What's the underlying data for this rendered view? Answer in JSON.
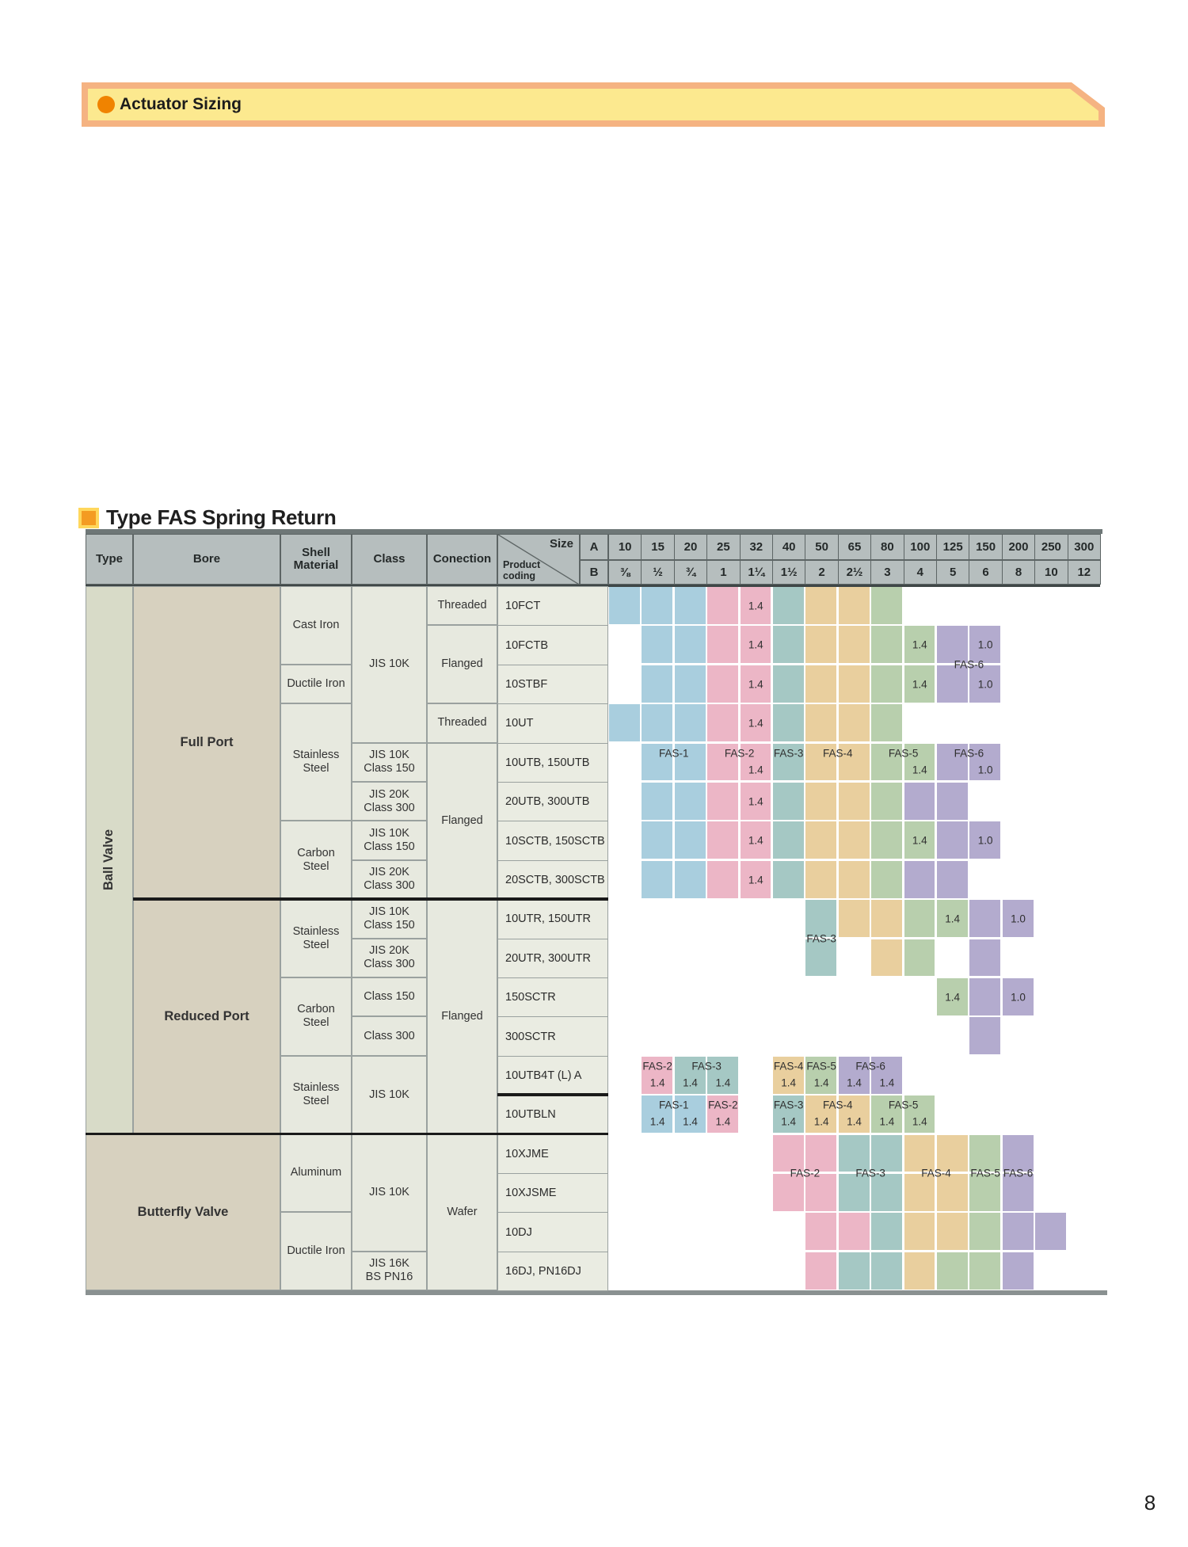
{
  "banner": {
    "title": "Actuator Sizing"
  },
  "section": {
    "title": "Type FAS Spring Return"
  },
  "page_number": "8",
  "table": {
    "column_headers": {
      "type": "Type",
      "bore": "Bore",
      "shell": "Shell\nMaterial",
      "class": "Class",
      "connection": "Conection"
    },
    "corner": {
      "size_label": "Size",
      "product_label": "Product\ncoding",
      "row_a": "A",
      "row_b": "B"
    },
    "sizes_a": [
      "10",
      "15",
      "20",
      "25",
      "32",
      "40",
      "50",
      "65",
      "80",
      "100",
      "125",
      "150",
      "200",
      "250",
      "300"
    ],
    "sizes_b": [
      "⅜",
      "½",
      "¾",
      "1",
      "1¼",
      "1½",
      "2",
      "2½",
      "3",
      "4",
      "5",
      "6",
      "8",
      "10",
      "12"
    ],
    "left_cells": [
      {
        "col": "type",
        "r0": 0,
        "r1": 13,
        "label": "Ball Valve",
        "kind": "type",
        "vertical": true
      },
      {
        "col": "bore",
        "r0": 0,
        "r1": 7,
        "label": "Full Port",
        "kind": "bore"
      },
      {
        "col": "bore",
        "r0": 8,
        "r1": 13,
        "label": "Reduced Port",
        "kind": "bore"
      },
      {
        "col": "typebore",
        "r0": 14,
        "r1": 17,
        "label": "Butterfly Valve",
        "kind": "bore"
      },
      {
        "col": "shell",
        "r0": 0,
        "r1": 1,
        "label": "Cast Iron"
      },
      {
        "col": "shell",
        "r0": 2,
        "r1": 2,
        "label": "Ductile Iron"
      },
      {
        "col": "shell",
        "r0": 3,
        "r1": 5,
        "label": "Stainless\nSteel"
      },
      {
        "col": "shell",
        "r0": 6,
        "r1": 7,
        "label": "Carbon\nSteel"
      },
      {
        "col": "shell",
        "r0": 8,
        "r1": 9,
        "label": "Stainless\nSteel"
      },
      {
        "col": "shell",
        "r0": 10,
        "r1": 11,
        "label": "Carbon\nSteel"
      },
      {
        "col": "shell",
        "r0": 12,
        "r1": 13,
        "label": "Stainless\nSteel"
      },
      {
        "col": "shell",
        "r0": 14,
        "r1": 15,
        "label": "Aluminum"
      },
      {
        "col": "shell",
        "r0": 16,
        "r1": 17,
        "label": "Ductile Iron"
      },
      {
        "col": "class",
        "r0": 0,
        "r1": 3,
        "label": "JIS 10K"
      },
      {
        "col": "class",
        "r0": 4,
        "r1": 4,
        "label": "JIS 10K\nClass 150"
      },
      {
        "col": "class",
        "r0": 5,
        "r1": 5,
        "label": "JIS 20K\nClass 300"
      },
      {
        "col": "class",
        "r0": 6,
        "r1": 6,
        "label": "JIS 10K\nClass 150"
      },
      {
        "col": "class",
        "r0": 7,
        "r1": 7,
        "label": "JIS 20K\nClass 300"
      },
      {
        "col": "class",
        "r0": 8,
        "r1": 8,
        "label": "JIS 10K\nClass 150"
      },
      {
        "col": "class",
        "r0": 9,
        "r1": 9,
        "label": "JIS 20K\nClass 300"
      },
      {
        "col": "class",
        "r0": 10,
        "r1": 10,
        "label": "Class 150"
      },
      {
        "col": "class",
        "r0": 11,
        "r1": 11,
        "label": "Class 300"
      },
      {
        "col": "class",
        "r0": 12,
        "r1": 13,
        "label": "JIS 10K"
      },
      {
        "col": "class",
        "r0": 14,
        "r1": 16,
        "label": "JIS 10K"
      },
      {
        "col": "class",
        "r0": 17,
        "r1": 17,
        "label": "JIS 16K\nBS PN16"
      },
      {
        "col": "conn",
        "r0": 0,
        "r1": 0,
        "label": "Threaded"
      },
      {
        "col": "conn",
        "r0": 1,
        "r1": 2,
        "label": "Flanged"
      },
      {
        "col": "conn",
        "r0": 3,
        "r1": 3,
        "label": "Threaded"
      },
      {
        "col": "conn",
        "r0": 4,
        "r1": 7,
        "label": "Flanged"
      },
      {
        "col": "conn",
        "r0": 8,
        "r1": 13,
        "label": "Flanged"
      },
      {
        "col": "conn",
        "r0": 14,
        "r1": 17,
        "label": "Wafer"
      }
    ],
    "products": [
      "10FCT",
      "10FCTB",
      "10STBF",
      "10UT",
      "10UTB, 150UTB",
      "20UTB, 300UTB",
      "10SCTB, 150SCTB",
      "20SCTB, 300SCTB",
      "10UTR, 150UTR",
      "20UTR, 300UTR",
      "150SCTR",
      "300SCTR",
      "10UTB4T (L) A",
      "10UTBLN",
      "10XJME",
      "10XJSME",
      "10DJ",
      "16DJ, PN16DJ"
    ],
    "grid_blocks": [
      {
        "r": 0,
        "c0": 0,
        "c1": 2,
        "color": "blue"
      },
      {
        "r": 0,
        "c0": 3,
        "c1": 4,
        "color": "pink",
        "values": {
          "4": "1.4"
        }
      },
      {
        "r": 0,
        "c0": 5,
        "c1": 5,
        "color": "teal"
      },
      {
        "r": 0,
        "c0": 6,
        "c1": 7,
        "color": "tan"
      },
      {
        "r": 0,
        "c0": 8,
        "c1": 8,
        "color": "green"
      },
      {
        "r": 1,
        "c0": 1,
        "c1": 2,
        "color": "blue"
      },
      {
        "r": 1,
        "c0": 3,
        "c1": 4,
        "color": "pink",
        "values": {
          "4": "1.4"
        }
      },
      {
        "r": 1,
        "c0": 5,
        "c1": 5,
        "color": "teal"
      },
      {
        "r": 1,
        "c0": 6,
        "c1": 7,
        "color": "tan"
      },
      {
        "r": 1,
        "c0": 8,
        "c1": 9,
        "color": "green",
        "values": {
          "9": "1.4"
        }
      },
      {
        "r": 1,
        "c0": 10,
        "c1": 11,
        "color": "purple",
        "values": {
          "11": "1.0"
        }
      },
      {
        "r": 2,
        "c0": 1,
        "c1": 2,
        "color": "blue"
      },
      {
        "r": 2,
        "c0": 3,
        "c1": 4,
        "color": "pink",
        "values": {
          "4": "1.4"
        }
      },
      {
        "r": 2,
        "c0": 5,
        "c1": 5,
        "color": "teal"
      },
      {
        "r": 2,
        "c0": 6,
        "c1": 7,
        "color": "tan"
      },
      {
        "r": 2,
        "c0": 8,
        "c1": 9,
        "color": "green",
        "values": {
          "9": "1.4"
        }
      },
      {
        "r": 2,
        "c0": 10,
        "c1": 11,
        "color": "purple",
        "values": {
          "11": "1.0"
        }
      },
      {
        "r": 3,
        "c0": 0,
        "c1": 2,
        "color": "blue"
      },
      {
        "r": 3,
        "c0": 3,
        "c1": 4,
        "color": "pink",
        "values": {
          "4": "1.4"
        }
      },
      {
        "r": 3,
        "c0": 5,
        "c1": 5,
        "color": "teal"
      },
      {
        "r": 3,
        "c0": 6,
        "c1": 7,
        "color": "tan"
      },
      {
        "r": 3,
        "c0": 8,
        "c1": 8,
        "color": "green"
      },
      {
        "r": 4,
        "c0": 1,
        "c1": 2,
        "color": "blue",
        "label": "FAS-1"
      },
      {
        "r": 4,
        "c0": 3,
        "c1": 4,
        "color": "pink",
        "label": "FAS-2",
        "values": {
          "4": "1.4"
        }
      },
      {
        "r": 4,
        "c0": 5,
        "c1": 5,
        "color": "teal",
        "label": "FAS-3"
      },
      {
        "r": 4,
        "c0": 6,
        "c1": 7,
        "color": "tan",
        "label": "FAS-4"
      },
      {
        "r": 4,
        "c0": 8,
        "c1": 9,
        "color": "green",
        "label": "FAS-5",
        "values": {
          "9": "1.4"
        }
      },
      {
        "r": 4,
        "c0": 10,
        "c1": 11,
        "color": "purple",
        "label": "FAS-6",
        "values": {
          "11": "1.0"
        }
      },
      {
        "r": 5,
        "c0": 1,
        "c1": 2,
        "color": "blue"
      },
      {
        "r": 5,
        "c0": 3,
        "c1": 4,
        "color": "pink",
        "values": {
          "4": "1.4"
        }
      },
      {
        "r": 5,
        "c0": 5,
        "c1": 5,
        "color": "teal"
      },
      {
        "r": 5,
        "c0": 6,
        "c1": 7,
        "color": "tan"
      },
      {
        "r": 5,
        "c0": 8,
        "c1": 8,
        "color": "green"
      },
      {
        "r": 5,
        "c0": 9,
        "c1": 10,
        "color": "purple"
      },
      {
        "r": 6,
        "c0": 1,
        "c1": 2,
        "color": "blue"
      },
      {
        "r": 6,
        "c0": 3,
        "c1": 4,
        "color": "pink",
        "values": {
          "4": "1.4"
        }
      },
      {
        "r": 6,
        "c0": 5,
        "c1": 5,
        "color": "teal"
      },
      {
        "r": 6,
        "c0": 6,
        "c1": 7,
        "color": "tan"
      },
      {
        "r": 6,
        "c0": 8,
        "c1": 9,
        "color": "green",
        "values": {
          "9": "1.4"
        }
      },
      {
        "r": 6,
        "c0": 10,
        "c1": 11,
        "color": "purple",
        "values": {
          "11": "1.0"
        }
      },
      {
        "r": 7,
        "c0": 1,
        "c1": 2,
        "color": "blue"
      },
      {
        "r": 7,
        "c0": 3,
        "c1": 4,
        "color": "pink",
        "values": {
          "4": "1.4"
        }
      },
      {
        "r": 7,
        "c0": 5,
        "c1": 5,
        "color": "teal"
      },
      {
        "r": 7,
        "c0": 6,
        "c1": 7,
        "color": "tan"
      },
      {
        "r": 7,
        "c0": 8,
        "c1": 8,
        "color": "green"
      },
      {
        "r": 7,
        "c0": 9,
        "c1": 10,
        "color": "purple"
      },
      {
        "r": 8,
        "c0": 6,
        "c1": 6,
        "color": "teal"
      },
      {
        "r": 8,
        "c0": 7,
        "c1": 8,
        "color": "tan"
      },
      {
        "r": 8,
        "c0": 9,
        "c1": 10,
        "color": "green",
        "values": {
          "10": "1.4"
        }
      },
      {
        "r": 8,
        "c0": 11,
        "c1": 12,
        "color": "purple",
        "values": {
          "12": "1.0"
        }
      },
      {
        "r": 9,
        "c0": 6,
        "c1": 6,
        "color": "teal"
      },
      {
        "r": 9,
        "c0": 8,
        "c1": 8,
        "color": "tan"
      },
      {
        "r": 9,
        "c0": 9,
        "c1": 9,
        "color": "green"
      },
      {
        "r": 9,
        "c0": 11,
        "c1": 11,
        "color": "purple"
      },
      {
        "r": 10,
        "c0": 10,
        "c1": 10,
        "color": "green",
        "values": {
          "10": "1.4"
        }
      },
      {
        "r": 10,
        "c0": 11,
        "c1": 12,
        "color": "purple",
        "values": {
          "12": "1.0"
        }
      },
      {
        "r": 11,
        "c0": 11,
        "c1": 11,
        "color": "purple"
      },
      {
        "r": 12,
        "c0": 1,
        "c1": 1,
        "color": "pink",
        "label": "FAS-2",
        "values": {
          "1": "1.4"
        }
      },
      {
        "r": 12,
        "c0": 2,
        "c1": 3,
        "color": "teal",
        "label": "FAS-3",
        "values": {
          "2": "1.4",
          "3": "1.4"
        }
      },
      {
        "r": 12,
        "c0": 5,
        "c1": 5,
        "color": "tan",
        "label": "FAS-4",
        "values": {
          "5": "1.4"
        }
      },
      {
        "r": 12,
        "c0": 6,
        "c1": 6,
        "color": "green",
        "label": "FAS-5",
        "values": {
          "6": "1.4"
        }
      },
      {
        "r": 12,
        "c0": 7,
        "c1": 8,
        "color": "purple",
        "label": "FAS-6",
        "values": {
          "7": "1.4",
          "8": "1.4"
        }
      },
      {
        "r": 13,
        "c0": 1,
        "c1": 2,
        "color": "blue",
        "label": "FAS-1",
        "values": {
          "1": "1.4",
          "2": "1.4"
        }
      },
      {
        "r": 13,
        "c0": 3,
        "c1": 3,
        "color": "pink",
        "label": "FAS-2",
        "values": {
          "3": "1.4"
        }
      },
      {
        "r": 13,
        "c0": 5,
        "c1": 5,
        "color": "teal",
        "label": "FAS-3",
        "values": {
          "5": "1.4"
        }
      },
      {
        "r": 13,
        "c0": 6,
        "c1": 7,
        "color": "tan",
        "label": "FAS-4",
        "values": {
          "6": "1.4",
          "7": "1.4"
        }
      },
      {
        "r": 13,
        "c0": 8,
        "c1": 9,
        "color": "green",
        "label": "FAS-5",
        "values": {
          "8": "1.4",
          "9": "1.4"
        }
      },
      {
        "r": 14,
        "c0": 5,
        "c1": 6,
        "color": "pink"
      },
      {
        "r": 14,
        "c0": 7,
        "c1": 8,
        "color": "teal"
      },
      {
        "r": 14,
        "c0": 9,
        "c1": 10,
        "color": "tan"
      },
      {
        "r": 14,
        "c0": 11,
        "c1": 11,
        "color": "green"
      },
      {
        "r": 14,
        "c0": 12,
        "c1": 12,
        "color": "purple"
      },
      {
        "r": 15,
        "c0": 5,
        "c1": 6,
        "color": "pink"
      },
      {
        "r": 15,
        "c0": 7,
        "c1": 8,
        "color": "teal"
      },
      {
        "r": 15,
        "c0": 9,
        "c1": 10,
        "color": "tan"
      },
      {
        "r": 15,
        "c0": 11,
        "c1": 11,
        "color": "green"
      },
      {
        "r": 15,
        "c0": 12,
        "c1": 12,
        "color": "purple"
      },
      {
        "r": 16,
        "c0": 6,
        "c1": 7,
        "color": "pink"
      },
      {
        "r": 16,
        "c0": 8,
        "c1": 8,
        "color": "teal"
      },
      {
        "r": 16,
        "c0": 9,
        "c1": 10,
        "color": "tan"
      },
      {
        "r": 16,
        "c0": 11,
        "c1": 11,
        "color": "green"
      },
      {
        "r": 16,
        "c0": 12,
        "c1": 13,
        "color": "purple"
      },
      {
        "r": 17,
        "c0": 6,
        "c1": 6,
        "color": "pink"
      },
      {
        "r": 17,
        "c0": 7,
        "c1": 8,
        "color": "teal"
      },
      {
        "r": 17,
        "c0": 9,
        "c1": 9,
        "color": "tan"
      },
      {
        "r": 17,
        "c0": 10,
        "c1": 11,
        "color": "green"
      },
      {
        "r": 17,
        "c0": 12,
        "c1": 12,
        "color": "purple"
      }
    ],
    "straddle_labels": [
      {
        "text": "FAS-6",
        "c0": 10,
        "c1": 11,
        "boundary": 2
      },
      {
        "text": "FAS-3",
        "c0": 6,
        "c1": 6,
        "boundary": 9
      },
      {
        "text": "FAS-2",
        "c0": 5,
        "c1": 6,
        "boundary": 15
      },
      {
        "text": "FAS-3",
        "c0": 7,
        "c1": 8,
        "boundary": 15
      },
      {
        "text": "FAS-4",
        "c0": 9,
        "c1": 10,
        "boundary": 15
      },
      {
        "text": "FAS-5",
        "c0": 11,
        "c1": 11,
        "boundary": 15
      },
      {
        "text": "FAS-6",
        "c0": 12,
        "c1": 12,
        "boundary": 15
      }
    ],
    "colors": {
      "blue": "#a9cede",
      "pink": "#ecb6c6",
      "teal": "#a5c8c4",
      "tan": "#e9cf9e",
      "green": "#b8cfad",
      "purple": "#b3abce",
      "header_bg": "#b6bebe",
      "type_bg": "#d8dbc8",
      "bore_bg": "#d7d1bf",
      "cell_bg": "#e7e9df",
      "product_bg": "#eaece2",
      "banner_fill": "#fce98f",
      "banner_border": "#f5b382",
      "accent_orange": "#f08300",
      "title_square": "#f49b22"
    }
  }
}
